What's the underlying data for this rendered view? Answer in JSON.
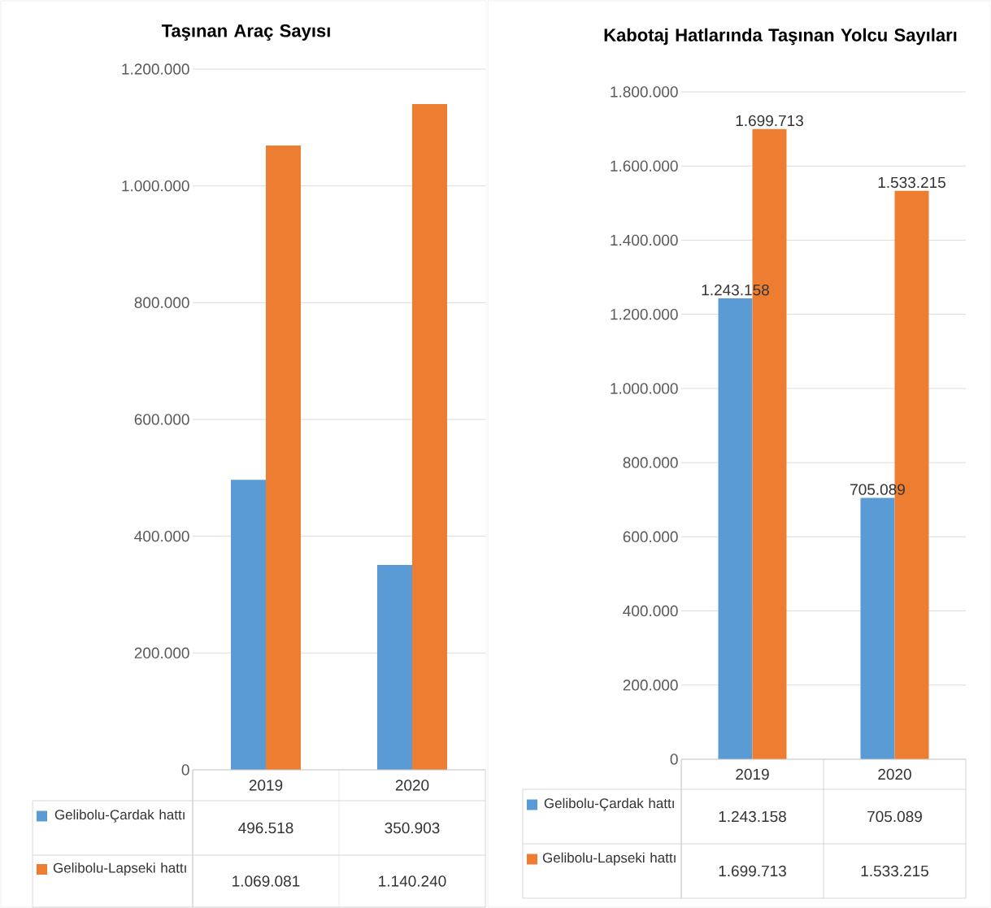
{
  "chart_data": [
    {
      "type": "bar",
      "title": "Taşınan Araç Sayısı",
      "categories": [
        "2019",
        "2020"
      ],
      "series": [
        {
          "name": "Gelibolu-Çardak hattı",
          "color": "#5b9bd5",
          "values": [
            496518,
            350903
          ],
          "value_labels": [
            "496.518",
            "350.903"
          ]
        },
        {
          "name": "Gelibolu-Lapseki hattı",
          "color": "#ed7d31",
          "values": [
            1069081,
            1140240
          ],
          "value_labels": [
            "1.069.081",
            "1.140.240"
          ]
        }
      ],
      "ylim": [
        0,
        1200000
      ],
      "yticks": [
        {
          "value": 0,
          "label": "0"
        },
        {
          "value": 200000,
          "label": "200.000"
        },
        {
          "value": 400000,
          "label": "400.000"
        },
        {
          "value": 600000,
          "label": "600.000"
        },
        {
          "value": 800000,
          "label": "800.000"
        },
        {
          "value": 1000000,
          "label": "1.000.000"
        },
        {
          "value": 1200000,
          "label": "1.200.000"
        }
      ],
      "grid": "y",
      "legend": "bottom"
    },
    {
      "type": "bar",
      "title": "Kabotaj Hatlarında Taşınan Yolcu Sayıları",
      "categories": [
        "2019",
        "2020"
      ],
      "series": [
        {
          "name": "Gelibolu-Çardak hattı",
          "color": "#5b9bd5",
          "values": [
            1243158,
            705089
          ],
          "value_labels": [
            "1.243.158",
            "705.089"
          ]
        },
        {
          "name": "Gelibolu-Lapseki hattı",
          "color": "#ed7d31",
          "values": [
            1699713,
            1533215
          ],
          "value_labels": [
            "1.699.713",
            "1.533.215"
          ]
        }
      ],
      "ylim": [
        0,
        1800000
      ],
      "yticks": [
        {
          "value": 0,
          "label": "0"
        },
        {
          "value": 200000,
          "label": "200.000"
        },
        {
          "value": 400000,
          "label": "400.000"
        },
        {
          "value": 600000,
          "label": "600.000"
        },
        {
          "value": 800000,
          "label": "800.000"
        },
        {
          "value": 1000000,
          "label": "1.000.000"
        },
        {
          "value": 1200000,
          "label": "1.200.000"
        },
        {
          "value": 1400000,
          "label": "1.400.000"
        },
        {
          "value": 1600000,
          "label": "1.600.000"
        },
        {
          "value": 1800000,
          "label": "1.800.000"
        }
      ],
      "grid": "y",
      "legend": "bottom",
      "data_labels": true
    }
  ]
}
